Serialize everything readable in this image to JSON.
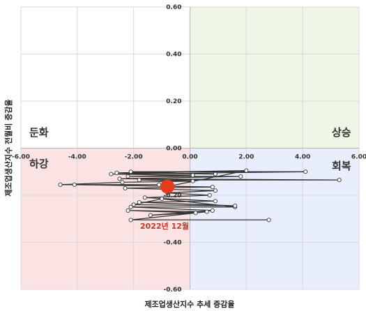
{
  "chart_data": {
    "type": "scatter",
    "xlim": [
      -6,
      6
    ],
    "ylim": [
      -0.6,
      0.6
    ],
    "x_ticks": [
      "-6.00",
      "-4.00",
      "-2.00",
      "0.00",
      "2.00",
      "4.00",
      "6.00"
    ],
    "y_ticks": [
      "0.60",
      "0.40",
      "0.20",
      "0.00",
      "-0.20",
      "-0.40",
      "-0.60"
    ],
    "xlabel": "제조업생산지수 추세 증감율",
    "ylabel": "제조업생산지수 전월비 증감율",
    "grid": true,
    "quadrant_labels": {
      "top_left": "둔화",
      "top_right": "상승",
      "bottom_left": "하강",
      "bottom_right": "회복"
    },
    "quadrant_colors": {
      "top_left": "#ffffff",
      "top_right": "#eef6e6",
      "bottom_left": "#fbe3e3",
      "bottom_right": "#e8eefb"
    },
    "path_color": "#333333",
    "marker_color": "#ffffff",
    "highlight": {
      "label": "2022년 12월",
      "x": -0.8,
      "y": -0.163,
      "color": "#e53b1c",
      "label_color": "#c0392b"
    },
    "path": [
      [
        2.8,
        -0.305
      ],
      [
        -2.1,
        -0.305
      ],
      [
        0.6,
        -0.27
      ],
      [
        -2.2,
        -0.265
      ],
      [
        0.2,
        -0.275
      ],
      [
        -1.4,
        -0.285
      ],
      [
        0.8,
        -0.265
      ],
      [
        -2.1,
        -0.25
      ],
      [
        1.6,
        -0.25
      ],
      [
        -1.0,
        -0.215
      ],
      [
        -2.0,
        -0.24
      ],
      [
        1.6,
        -0.245
      ],
      [
        -1.8,
        -0.23
      ],
      [
        0.9,
        -0.225
      ],
      [
        -1.6,
        -0.21
      ],
      [
        0.7,
        -0.2
      ],
      [
        -0.8,
        -0.19
      ],
      [
        0.9,
        -0.18
      ],
      [
        -2.3,
        -0.17
      ],
      [
        0.8,
        -0.165
      ],
      [
        -4.1,
        -0.155
      ],
      [
        -1.1,
        -0.155
      ],
      [
        -4.6,
        -0.155
      ],
      [
        -2.4,
        -0.145
      ],
      [
        0.1,
        -0.14
      ],
      [
        -1.8,
        -0.135
      ],
      [
        5.3,
        -0.135
      ],
      [
        -2.5,
        -0.13
      ],
      [
        1.8,
        -0.12
      ],
      [
        -2.2,
        -0.12
      ],
      [
        0.1,
        -0.115
      ],
      [
        -2.8,
        -0.11
      ],
      [
        4.1,
        -0.1
      ],
      [
        -2.1,
        -0.1
      ],
      [
        0.9,
        -0.11
      ],
      [
        -2.6,
        -0.105
      ],
      [
        2.0,
        -0.095
      ],
      [
        -0.8,
        -0.163
      ]
    ]
  }
}
